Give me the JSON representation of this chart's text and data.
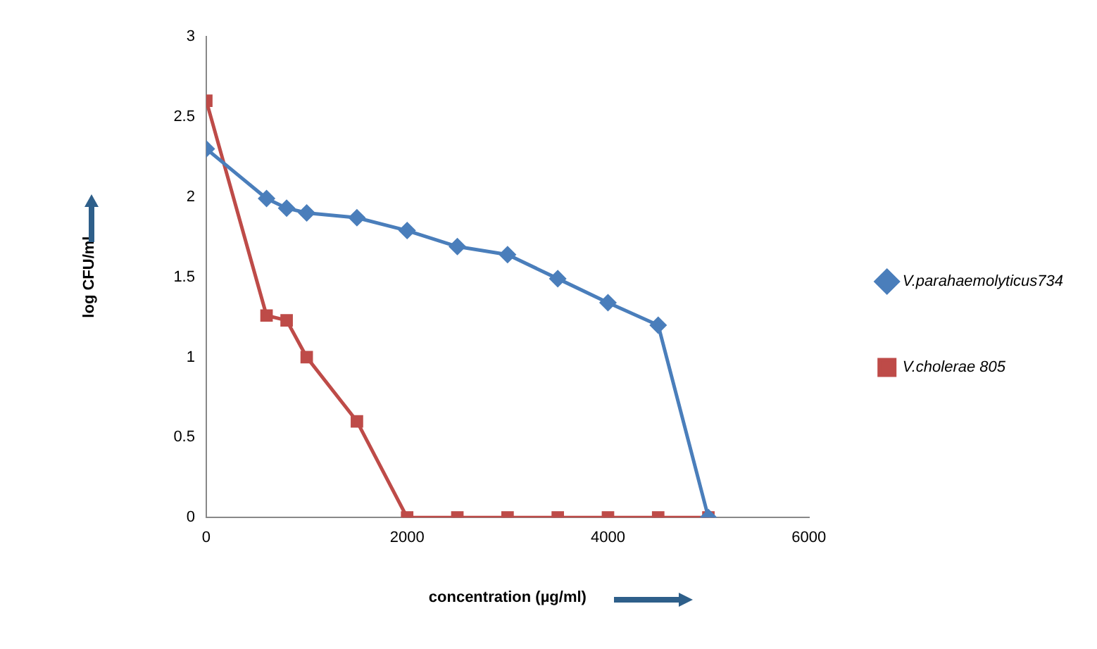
{
  "chart_data": {
    "type": "line",
    "xlabel": "concentration (µg/ml)",
    "ylabel": "log CFU/ml",
    "xlim": [
      0,
      6000
    ],
    "xticks": [
      0,
      2000,
      4000,
      6000
    ],
    "ylim": [
      0,
      3
    ],
    "yticks": [
      0,
      0.5,
      1,
      1.5,
      2,
      2.5,
      3
    ],
    "grid": false,
    "legend": "right",
    "series": [
      {
        "name": "V.parahaemolyticus734",
        "color": "#4a7ebb",
        "marker": "diamond",
        "x": [
          0,
          600,
          800,
          1000,
          1500,
          2000,
          2500,
          3000,
          3500,
          4000,
          4500,
          5000
        ],
        "values": [
          2.3,
          1.99,
          1.93,
          1.9,
          1.87,
          1.79,
          1.69,
          1.64,
          1.49,
          1.34,
          1.2,
          0
        ]
      },
      {
        "name": "V.cholerae 805",
        "color": "#be4b48",
        "marker": "square",
        "x": [
          0,
          600,
          800,
          1000,
          1500,
          2000,
          2500,
          3000,
          3500,
          4000,
          4500,
          5000
        ],
        "values": [
          2.6,
          1.26,
          1.23,
          1.0,
          0.6,
          0,
          0,
          0,
          0,
          0,
          0,
          0
        ]
      }
    ]
  }
}
